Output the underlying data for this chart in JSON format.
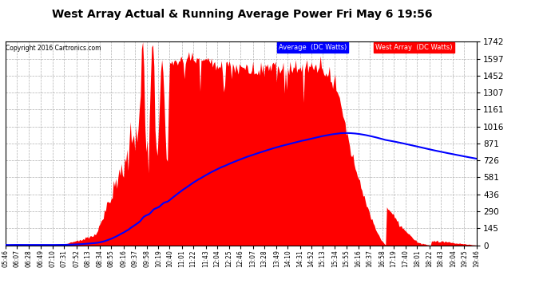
{
  "title": "West Array Actual & Running Average Power Fri May 6 19:56",
  "copyright": "Copyright 2016 Cartronics.com",
  "legend_avg": "Average  (DC Watts)",
  "legend_west": "West Array  (DC Watts)",
  "ymax": 1742.1,
  "yticks": [
    0.0,
    145.2,
    290.3,
    435.5,
    580.7,
    725.9,
    871.0,
    1016.2,
    1161.4,
    1306.6,
    1451.7,
    1596.9,
    1742.1
  ],
  "bg_color": "#ffffff",
  "plot_bg_color": "#ffffff",
  "grid_color": "#b0b0b0",
  "fill_color": "#ff0000",
  "line_color": "#0000ff",
  "legend_avg_bg": "#0000ff",
  "legend_west_bg": "#ff0000"
}
